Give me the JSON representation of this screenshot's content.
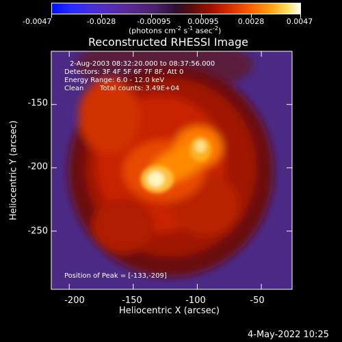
{
  "colorbar": {
    "tick_labels": [
      "-0.0047",
      "-0.0028",
      "-0.00095",
      "0.00095",
      "0.0028",
      "0.0047"
    ],
    "unit_label": "(photons cm",
    "unit_exp1": "-2",
    "unit_mid": " s",
    "unit_exp2": "-1",
    "unit_end": " asec",
    "unit_exp3": "-2",
    "unit_close": ")"
  },
  "title": "Reconstructed RHESSI Image",
  "annotations": {
    "time_range": "2-Aug-2003 08:32:20.000 to 08:37:56.000",
    "detectors": "Detectors: 3F 4F 5F 6F 7F 8F, Att 0",
    "energy_range": "Energy Range: 6.0 - 12.0 keV",
    "clean_label": "Clean",
    "total_counts": "Total counts: 3.49E+04",
    "peak_position": "Position of Peak = [-133,-209]"
  },
  "axes": {
    "xlabel": "Heliocentric X (arcsec)",
    "ylabel": "Heliocentric Y (arcsec)",
    "x_ticks": [
      "-200",
      "-150",
      "-100",
      "-50"
    ],
    "y_ticks": [
      "-150",
      "-200",
      "-250"
    ],
    "x_tick_values": [
      -200,
      -150,
      -100,
      -50
    ],
    "y_tick_values": [
      -150,
      -200,
      -250
    ],
    "x_range": [
      -214,
      -26
    ],
    "y_range": [
      -296,
      -108
    ]
  },
  "footer_date": "4-May-2022 10:25",
  "peak": {
    "x": -133,
    "y": -209
  },
  "colors": {
    "frame": "#ffffff",
    "background": "#000000"
  }
}
